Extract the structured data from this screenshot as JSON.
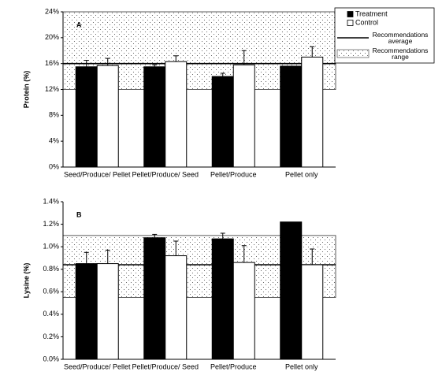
{
  "chart_data": [
    {
      "type": "bar",
      "panel_label": "A",
      "y_label": "Protein (%)",
      "categories": [
        "Seed/Produce/ Pellet",
        "Pellet/Produce/ Seed",
        "Pellet/Produce",
        "Pellet only"
      ],
      "series": [
        {
          "name": "Treatment",
          "color": "#000000",
          "values": [
            15.5,
            15.5,
            14.0,
            15.6
          ],
          "errors": [
            1.0,
            0.3,
            0.5,
            null
          ]
        },
        {
          "name": "Control",
          "color": "#ffffff",
          "values": [
            15.7,
            16.3,
            15.8,
            17.0
          ],
          "errors": [
            1.1,
            0.9,
            2.2,
            1.6
          ]
        }
      ],
      "recommendation": {
        "range": [
          12,
          24
        ],
        "average": 16,
        "range_label": "Recommendations range",
        "average_label": "Recommendations average"
      },
      "ylim": [
        0,
        24
      ],
      "yticks": [
        {
          "value": 0,
          "label": "0%"
        },
        {
          "value": 4,
          "label": "4%"
        },
        {
          "value": 8,
          "label": "8%"
        },
        {
          "value": 12,
          "label": "12%"
        },
        {
          "value": 16,
          "label": "16%"
        },
        {
          "value": 20,
          "label": "20%"
        },
        {
          "value": 24,
          "label": "24%"
        }
      ],
      "grid": false
    },
    {
      "type": "bar",
      "panel_label": "B",
      "y_label": "Lysine (%)",
      "categories": [
        "Seed/Produce/ Pellet",
        "Pellet/Produce/ Seed",
        "Pellet/Produce",
        "Pellet only"
      ],
      "series": [
        {
          "name": "Treatment",
          "color": "#000000",
          "values": [
            0.85,
            1.08,
            1.07,
            1.22
          ],
          "errors": [
            0.1,
            0.03,
            0.05,
            null
          ]
        },
        {
          "name": "Control",
          "color": "#ffffff",
          "values": [
            0.85,
            0.92,
            0.86,
            0.84
          ],
          "errors": [
            0.12,
            0.13,
            0.15,
            0.14
          ]
        }
      ],
      "recommendation": {
        "range": [
          0.55,
          1.1
        ],
        "average": 0.84
      },
      "ylim": [
        0,
        1.4
      ],
      "yticks": [
        {
          "value": 0,
          "label": "0.0%"
        },
        {
          "value": 0.2,
          "label": "0.2%"
        },
        {
          "value": 0.4,
          "label": "0.4%"
        },
        {
          "value": 0.6,
          "label": "0.6%"
        },
        {
          "value": 0.8,
          "label": "0.8%"
        },
        {
          "value": 1.0,
          "label": "1.0%"
        },
        {
          "value": 1.2,
          "label": "1.2%"
        },
        {
          "value": 1.4,
          "label": "1.4%"
        }
      ],
      "grid": false
    }
  ]
}
